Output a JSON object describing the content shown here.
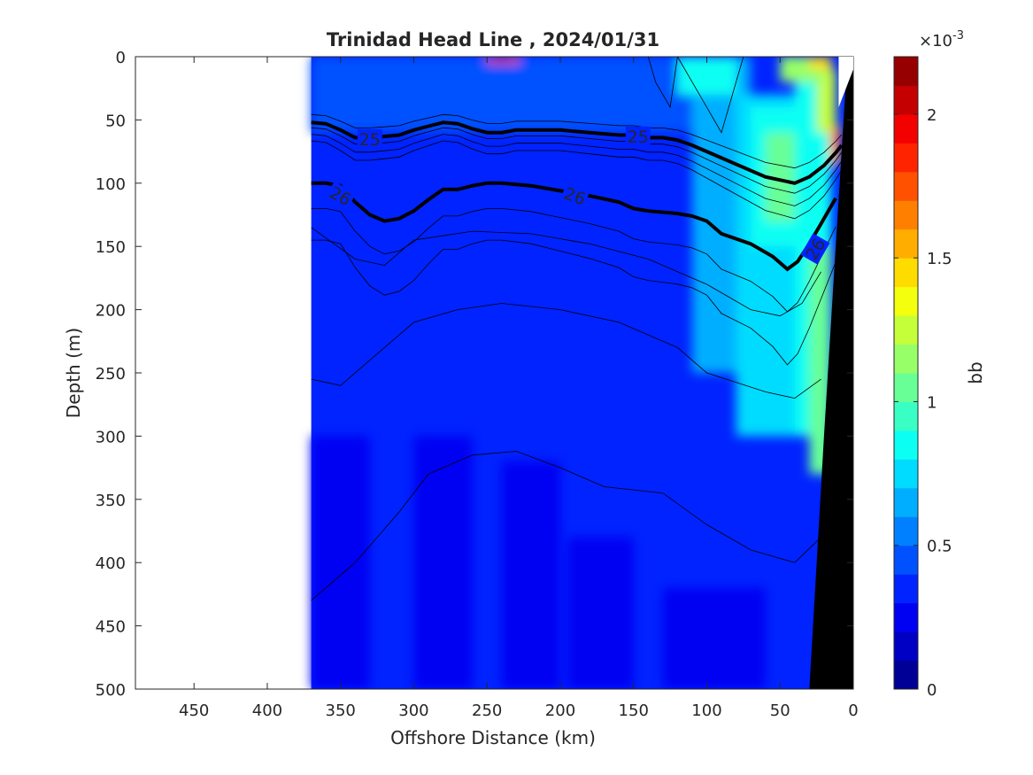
{
  "chart_data": {
    "type": "heatmap",
    "title": "Trinidad Head Line , 2024/01/31",
    "xlabel": "Offshore Distance (km)",
    "ylabel": "Depth (m)",
    "xlim": [
      490,
      0
    ],
    "ylim": [
      0,
      500
    ],
    "x_reversed": true,
    "y_reversed": true,
    "x_ticks": [
      450,
      400,
      350,
      300,
      250,
      200,
      150,
      100,
      50,
      0
    ],
    "y_ticks": [
      0,
      50,
      100,
      150,
      200,
      250,
      300,
      350,
      400,
      450,
      500
    ],
    "data_extent_km": [
      370,
      0
    ],
    "colorbar": {
      "label": "bb",
      "exponent_label": "×10",
      "exponent_power": "-3",
      "range": [
        0,
        0.0022
      ],
      "ticks": [
        0,
        0.0005,
        0.001,
        0.0015,
        0.002
      ],
      "tick_labels": [
        "0",
        "0.5",
        "1",
        "1.5",
        "2"
      ],
      "colormap": "jet",
      "levels": 22
    },
    "density_contours": [
      {
        "label": "25",
        "depth_m": [
          52,
          53,
          58,
          64,
          64,
          63,
          62,
          58,
          55,
          52,
          53,
          57,
          60,
          60,
          58,
          58,
          58,
          60,
          62,
          62,
          64,
          64,
          66,
          70,
          75,
          85,
          95,
          100,
          95,
          86,
          76,
          70
        ],
        "x_km": [
          370,
          360,
          350,
          340,
          330,
          320,
          310,
          300,
          290,
          280,
          270,
          260,
          250,
          240,
          230,
          220,
          200,
          180,
          160,
          150,
          140,
          130,
          120,
          110,
          100,
          80,
          60,
          40,
          30,
          20,
          12,
          8
        ]
      },
      {
        "label": "26",
        "depth_m": [
          100,
          100,
          102,
          115,
          125,
          130,
          128,
          122,
          113,
          105,
          105,
          102,
          100,
          100,
          102,
          106,
          110,
          115,
          120,
          122,
          124,
          126,
          130,
          140,
          148,
          158,
          168,
          162,
          148,
          128,
          112
        ],
        "x_km": [
          370,
          360,
          350,
          340,
          330,
          320,
          310,
          300,
          290,
          280,
          270,
          260,
          250,
          240,
          220,
          200,
          180,
          160,
          150,
          140,
          120,
          110,
          100,
          90,
          70,
          55,
          45,
          38,
          30,
          20,
          12
        ]
      }
    ]
  }
}
